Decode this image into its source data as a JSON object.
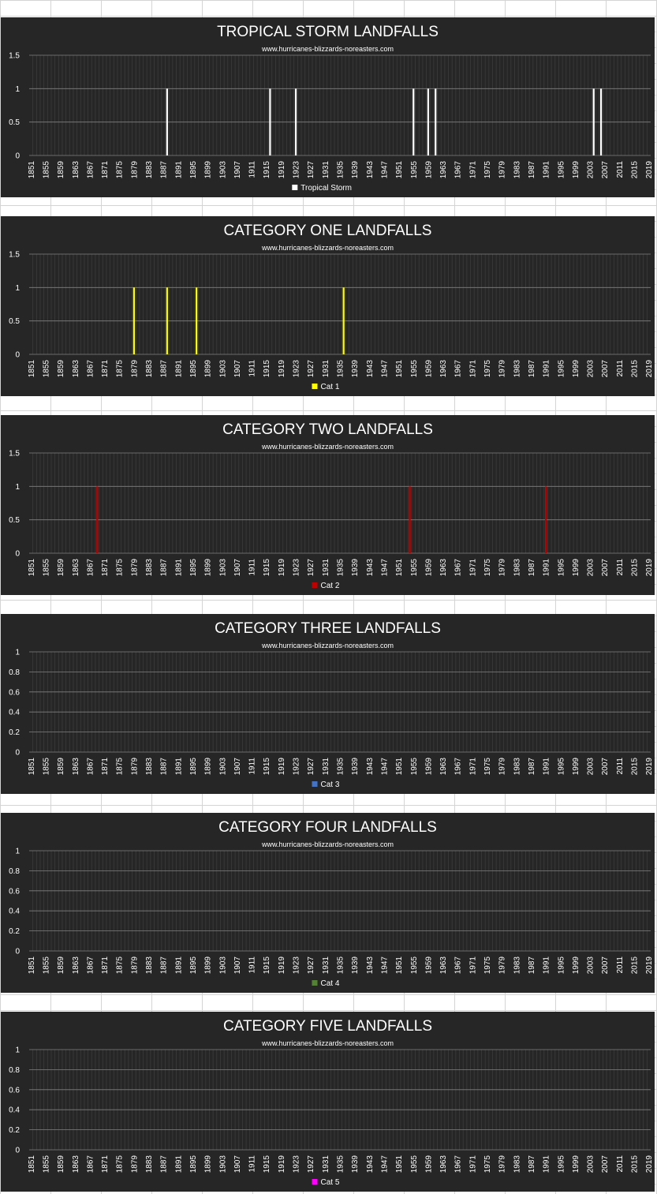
{
  "chart_data": [
    {
      "type": "bar",
      "title": "TROPICAL STORM LANDFALLS",
      "subtitle": "www.hurricanes-blizzards-noreasters.com",
      "xlabel": "",
      "ylabel": "",
      "x_range": [
        1851,
        2019
      ],
      "x_tick_step": 4,
      "ylim": [
        0,
        1.5
      ],
      "y_ticks": [
        "0",
        "0.5",
        "1",
        "1.5"
      ],
      "grid": true,
      "legend_position": "bottom",
      "series": [
        {
          "name": "Tropical Storm",
          "color": "#ffffff",
          "points": [
            {
              "x": 1888,
              "y": 1
            },
            {
              "x": 1916,
              "y": 1
            },
            {
              "x": 1923,
              "y": 1
            },
            {
              "x": 1955,
              "y": 1
            },
            {
              "x": 1959,
              "y": 1
            },
            {
              "x": 1961,
              "y": 1
            },
            {
              "x": 2004,
              "y": 1
            },
            {
              "x": 2006,
              "y": 1
            }
          ]
        }
      ]
    },
    {
      "type": "bar",
      "title": "CATEGORY ONE LANDFALLS",
      "subtitle": "www.hurricanes-blizzards-noreasters.com",
      "xlabel": "",
      "ylabel": "",
      "x_range": [
        1851,
        2019
      ],
      "x_tick_step": 4,
      "ylim": [
        0,
        1.5
      ],
      "y_ticks": [
        "0",
        "0.5",
        "1",
        "1.5"
      ],
      "grid": true,
      "legend_position": "bottom",
      "series": [
        {
          "name": "Cat 1",
          "color": "#ffff00",
          "points": [
            {
              "x": 1879,
              "y": 1
            },
            {
              "x": 1888,
              "y": 1
            },
            {
              "x": 1896,
              "y": 1
            },
            {
              "x": 1936,
              "y": 1
            }
          ]
        }
      ]
    },
    {
      "type": "bar",
      "title": "CATEGORY TWO LANDFALLS",
      "subtitle": "www.hurricanes-blizzards-noreasters.com",
      "xlabel": "",
      "ylabel": "",
      "x_range": [
        1851,
        2019
      ],
      "x_tick_step": 4,
      "ylim": [
        0,
        1.5
      ],
      "y_ticks": [
        "0",
        "0.5",
        "1",
        "1.5"
      ],
      "grid": true,
      "legend_position": "bottom",
      "series": [
        {
          "name": "Cat 2",
          "color": "#c00000",
          "points": [
            {
              "x": 1869,
              "y": 1
            },
            {
              "x": 1954,
              "y": 1
            },
            {
              "x": 1991,
              "y": 1
            }
          ]
        }
      ]
    },
    {
      "type": "bar",
      "title": "CATEGORY THREE LANDFALLS",
      "subtitle": "www.hurricanes-blizzards-noreasters.com",
      "xlabel": "",
      "ylabel": "",
      "x_range": [
        1851,
        2019
      ],
      "x_tick_step": 4,
      "ylim": [
        0,
        1
      ],
      "y_ticks": [
        "0",
        "0.2",
        "0.4",
        "0.6",
        "0.8",
        "1"
      ],
      "grid": true,
      "legend_position": "bottom",
      "series": [
        {
          "name": "Cat 3",
          "color": "#4472c4",
          "points": []
        }
      ]
    },
    {
      "type": "bar",
      "title": "CATEGORY FOUR LANDFALLS",
      "subtitle": "www.hurricanes-blizzards-noreasters.com",
      "xlabel": "",
      "ylabel": "",
      "x_range": [
        1851,
        2019
      ],
      "x_tick_step": 4,
      "ylim": [
        0,
        1
      ],
      "y_ticks": [
        "0",
        "0.2",
        "0.4",
        "0.6",
        "0.8",
        "1"
      ],
      "grid": true,
      "legend_position": "bottom",
      "series": [
        {
          "name": "Cat 4",
          "color": "#548235",
          "points": []
        }
      ]
    },
    {
      "type": "bar",
      "title": "CATEGORY FIVE LANDFALLS",
      "subtitle": "www.hurricanes-blizzards-noreasters.com",
      "xlabel": "",
      "ylabel": "",
      "x_range": [
        1851,
        2019
      ],
      "x_tick_step": 4,
      "ylim": [
        0,
        1
      ],
      "y_ticks": [
        "0",
        "0.2",
        "0.4",
        "0.6",
        "0.8",
        "1"
      ],
      "grid": true,
      "legend_position": "bottom",
      "series": [
        {
          "name": "Cat 5",
          "color": "#ff00ff",
          "points": []
        }
      ]
    }
  ]
}
